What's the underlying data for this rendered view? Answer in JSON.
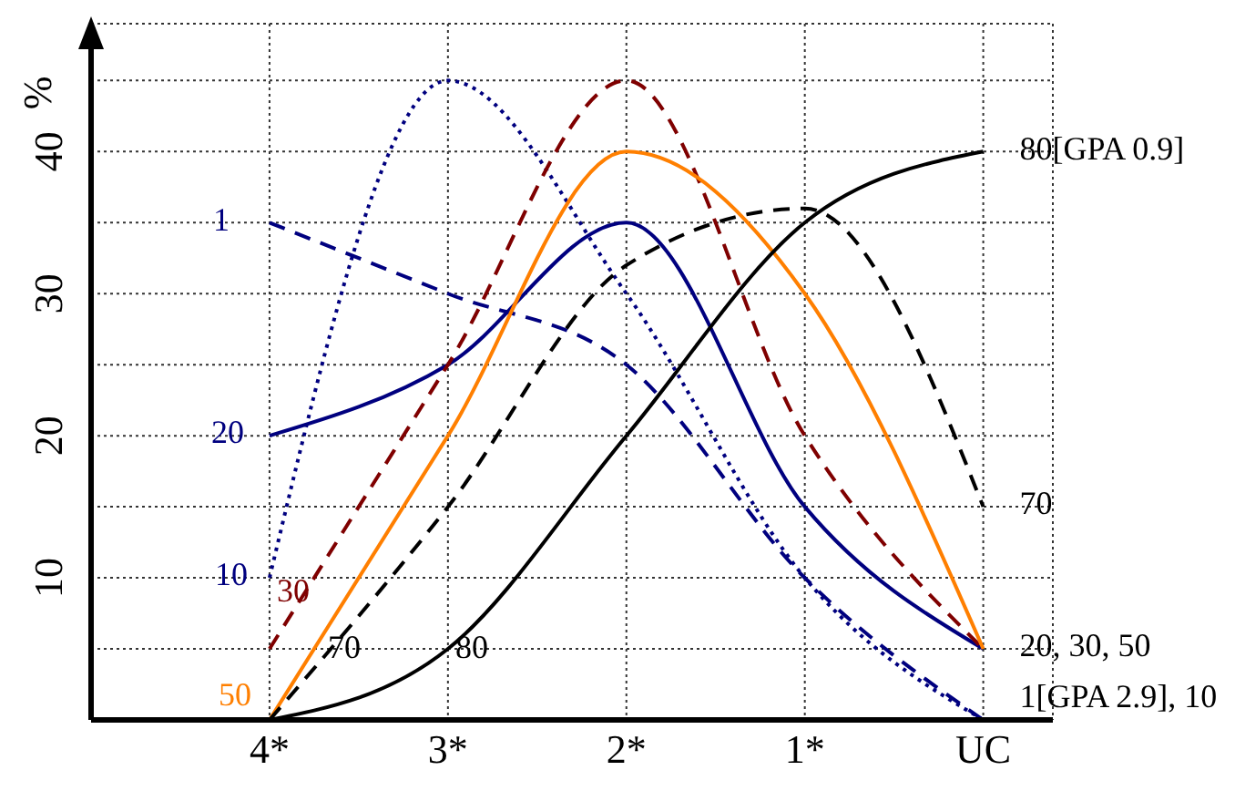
{
  "chart_data": {
    "type": "line",
    "ylabel": "%",
    "categories": [
      "4*",
      "3*",
      "2*",
      "1*",
      "UC"
    ],
    "ylim": [
      0,
      49
    ],
    "yticks": [
      {
        "value": 5,
        "label": null
      },
      10,
      {
        "value": 15,
        "label": null
      },
      20,
      {
        "value": 25,
        "label": null
      },
      30,
      {
        "value": 35,
        "label": null
      },
      40,
      {
        "value": 45,
        "label": null
      }
    ],
    "grid": true,
    "series": [
      {
        "name": "1",
        "color": "#00007f",
        "line_style": "dashed",
        "values": [
          35,
          30,
          25,
          10,
          0
        ]
      },
      {
        "name": "10",
        "color": "#00007f",
        "line_style": "dotted",
        "values": [
          10,
          45,
          30,
          10,
          0
        ]
      },
      {
        "name": "20",
        "color": "#00007f",
        "line_style": "solid",
        "values": [
          20,
          25,
          35,
          15,
          5
        ]
      },
      {
        "name": "30",
        "color": "#7f0000",
        "line_style": "dashed",
        "values": [
          5,
          25,
          45,
          20,
          5
        ]
      },
      {
        "name": "50",
        "color": "#ff7f00",
        "line_style": "solid",
        "values": [
          0,
          20,
          40,
          30,
          5
        ]
      },
      {
        "name": "70",
        "color": "#000000",
        "line_style": "dashed",
        "values": [
          0,
          15,
          32,
          36,
          15
        ]
      },
      {
        "name": "80",
        "color": "#000000",
        "line_style": "solid",
        "values": [
          0,
          5,
          20,
          35,
          40
        ]
      }
    ],
    "annotations": [
      {
        "text": "80[GPA 0.9]",
        "x": "UC",
        "y": 40
      },
      {
        "text": "70",
        "x": "UC",
        "y": 15
      },
      {
        "text": "20, 30, 50",
        "x": "UC",
        "y": 5
      },
      {
        "text": "1[GPA 2.9], 10",
        "x": "UC",
        "y": 0
      }
    ]
  }
}
